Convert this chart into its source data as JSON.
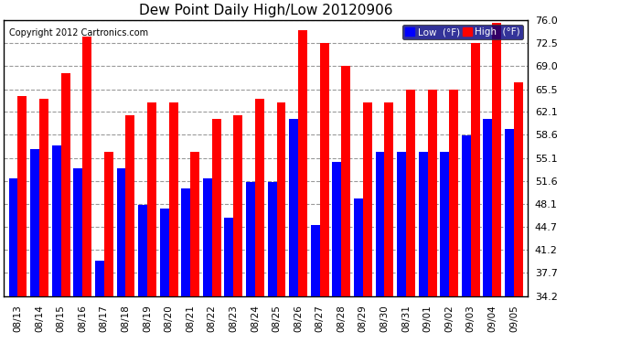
{
  "title": "Dew Point Daily High/Low 20120906",
  "copyright": "Copyright 2012 Cartronics.com",
  "dates": [
    "08/13",
    "08/14",
    "08/15",
    "08/16",
    "08/17",
    "08/18",
    "08/19",
    "08/20",
    "08/21",
    "08/22",
    "08/23",
    "08/24",
    "08/25",
    "08/26",
    "08/27",
    "08/28",
    "08/29",
    "08/30",
    "08/31",
    "09/01",
    "09/02",
    "09/03",
    "09/04",
    "09/05"
  ],
  "high_values": [
    64.5,
    64.0,
    68.0,
    73.5,
    56.0,
    61.5,
    63.5,
    63.5,
    56.0,
    61.0,
    61.5,
    64.0,
    63.5,
    74.5,
    72.5,
    69.0,
    63.5,
    63.5,
    65.5,
    65.5,
    65.5,
    72.5,
    75.5,
    66.5
  ],
  "low_values": [
    52.0,
    56.5,
    57.0,
    53.5,
    39.5,
    53.5,
    48.0,
    47.5,
    50.5,
    52.0,
    46.0,
    51.5,
    51.5,
    61.0,
    45.0,
    54.5,
    49.0,
    56.0,
    56.0,
    56.0,
    56.0,
    58.5,
    61.0,
    59.5
  ],
  "high_color": "#ff0000",
  "low_color": "#0000ff",
  "bg_color": "#ffffff",
  "plot_bg_color": "#ffffff",
  "grid_color": "#999999",
  "ymin": 34.2,
  "ymax": 76.0,
  "yticks": [
    34.2,
    37.7,
    41.2,
    44.7,
    48.1,
    51.6,
    55.1,
    58.6,
    62.1,
    65.5,
    69.0,
    72.5,
    76.0
  ],
  "legend_low_label": "Low  (°F)",
  "legend_high_label": "High  (°F)",
  "legend_bg": "#000080",
  "legend_high_bg": "#cc0000"
}
